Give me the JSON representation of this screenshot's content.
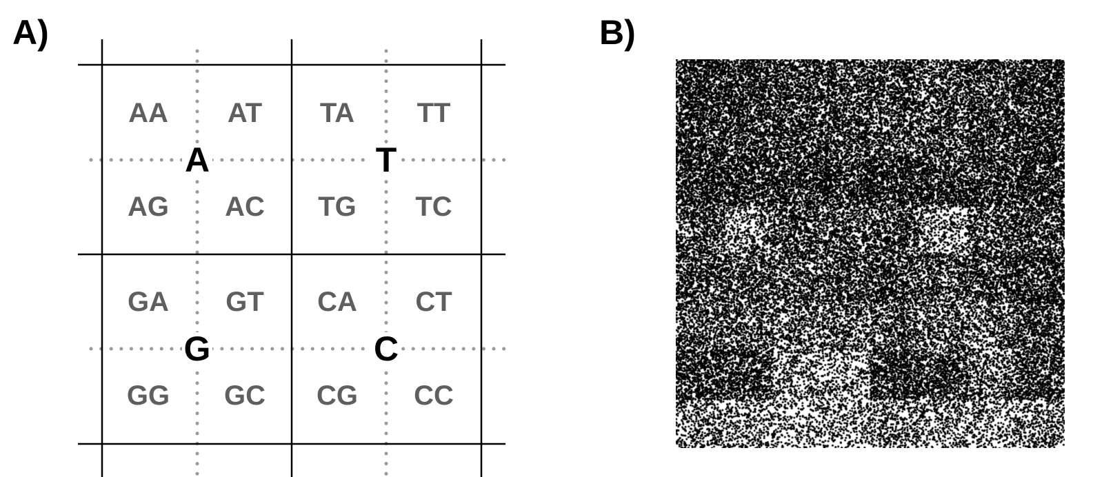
{
  "panels": {
    "a_label": "A)",
    "b_label": "B)"
  },
  "grid": {
    "nucleotides": [
      {
        "key": "A",
        "label": "A",
        "dinucleotides": [
          "AA",
          "AT",
          "AG",
          "AC"
        ]
      },
      {
        "key": "T",
        "label": "T",
        "dinucleotides": [
          "TA",
          "TT",
          "TG",
          "TC"
        ]
      },
      {
        "key": "G",
        "label": "G",
        "dinucleotides": [
          "GA",
          "GT",
          "GG",
          "GC"
        ]
      },
      {
        "key": "C",
        "label": "C",
        "dinucleotides": [
          "CA",
          "CT",
          "CG",
          "CC"
        ]
      }
    ],
    "colors": {
      "grid_line": "#000000",
      "dotted_line": "#9a9a9a",
      "dinucleotide_text": "#5f5f5f",
      "nucleotide_text": "#000000"
    }
  },
  "scatter": {
    "type": "point-density",
    "point_color": "#000000",
    "background": "#ffffff"
  }
}
